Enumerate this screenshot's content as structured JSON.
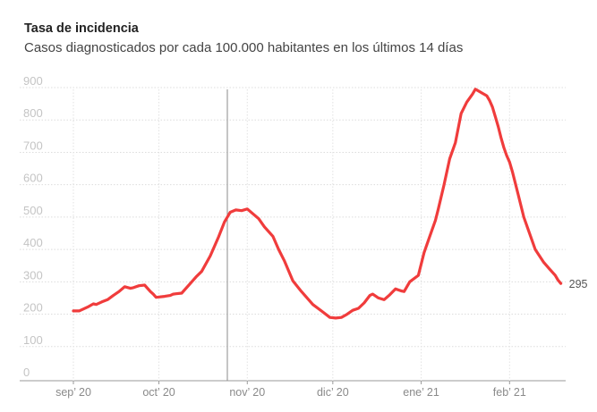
{
  "title": "Tasa de incidencia",
  "subtitle": "Casos diagnosticados por cada 100.000 habitantes en los últimos 14 días",
  "chart_data": {
    "type": "line",
    "title": "Tasa de incidencia",
    "subtitle": "Casos diagnosticados por cada 100.000 habitantes en los últimos 14 días",
    "xlabel": "",
    "ylabel": "",
    "ylim": [
      0,
      900
    ],
    "yticks": [
      0,
      100,
      200,
      300,
      400,
      500,
      600,
      700,
      800,
      900
    ],
    "grid": "vertical dotted at month starts, horizontal dotted",
    "x_tick_labels": [
      "sep’ 20",
      "oct’ 20",
      "nov’ 20",
      "dic’ 20",
      "ene’ 21",
      "feb’ 21"
    ],
    "x_tick_days": [
      0,
      30,
      61,
      91,
      122,
      153
    ],
    "reference_line_day": 54,
    "series": [
      {
        "name": "Tasa de incidencia",
        "color": "#f03c3c",
        "end_label": "295",
        "days": [
          0,
          2,
          5,
          7,
          8,
          10,
          12,
          14,
          16,
          18,
          20,
          21,
          23,
          25,
          27,
          28,
          29,
          32,
          34,
          35,
          36,
          38,
          41,
          43,
          45,
          48,
          51,
          53,
          55,
          57,
          59,
          61,
          63,
          65,
          67,
          70,
          72,
          74,
          77,
          80,
          84,
          87,
          90,
          92,
          94,
          96,
          98,
          100,
          102,
          104,
          105,
          107,
          109,
          111,
          113,
          115,
          116,
          118,
          121,
          123,
          125,
          127,
          128,
          130,
          132,
          134,
          136,
          138,
          140,
          141,
          143,
          145,
          146,
          147,
          148,
          149,
          150,
          151,
          152,
          153,
          154,
          156,
          158,
          160,
          162,
          165,
          167,
          169,
          170,
          171
        ],
        "values": [
          210,
          210,
          222,
          232,
          230,
          238,
          245,
          258,
          270,
          285,
          280,
          282,
          288,
          290,
          270,
          262,
          252,
          255,
          258,
          262,
          263,
          265,
          295,
          315,
          332,
          380,
          440,
          485,
          515,
          522,
          520,
          525,
          510,
          495,
          470,
          440,
          400,
          365,
          303,
          270,
          230,
          210,
          190,
          188,
          190,
          200,
          212,
          218,
          235,
          258,
          262,
          250,
          245,
          260,
          278,
          272,
          270,
          300,
          320,
          390,
          440,
          490,
          525,
          600,
          680,
          730,
          820,
          855,
          880,
          895,
          885,
          875,
          860,
          840,
          810,
          780,
          745,
          715,
          690,
          670,
          640,
          570,
          500,
          450,
          400,
          360,
          340,
          320,
          305,
          295
        ]
      }
    ]
  }
}
